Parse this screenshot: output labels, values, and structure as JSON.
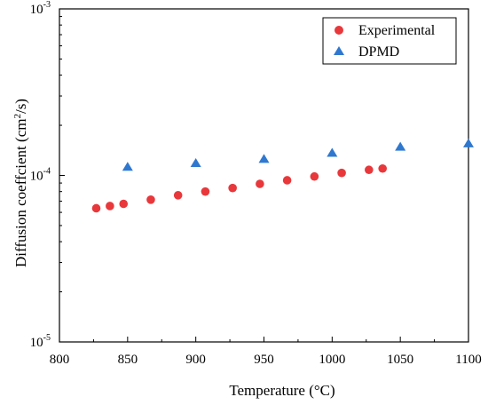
{
  "chart_data": {
    "type": "scatter",
    "xlabel": "Temperature (°C)",
    "ylabel": "Diffusion coeffcient (cm",
    "ylabel_sup": "2",
    "ylabel_tail": "/s)",
    "xlim": [
      800,
      1100
    ],
    "ylim": [
      1e-05,
      0.001
    ],
    "yscale": "log",
    "xticks": [
      800,
      850,
      900,
      950,
      1000,
      1050,
      1100
    ],
    "xtick_labels": [
      "800",
      "850",
      "900",
      "950",
      "1000",
      "1050",
      "1100"
    ],
    "yticks": [
      1e-05,
      0.0001,
      0.001
    ],
    "ytick_labels": [
      {
        "base": "10",
        "exp": "-5"
      },
      {
        "base": "10",
        "exp": "-4"
      },
      {
        "base": "10",
        "exp": "-3"
      }
    ],
    "grid": false,
    "legend_position": "top-right",
    "series": [
      {
        "name": "Experimental",
        "marker": "circle",
        "color": "#e8383b",
        "x": [
          827,
          837,
          847,
          867,
          887,
          907,
          927,
          947,
          967,
          987,
          1007,
          1027,
          1037
        ],
        "y": [
          6.35e-05,
          6.55e-05,
          6.75e-05,
          7.15e-05,
          7.6e-05,
          8e-05,
          8.4e-05,
          8.9e-05,
          9.35e-05,
          9.85e-05,
          0.0001035,
          0.000108,
          0.00011
        ]
      },
      {
        "name": "DPMD",
        "marker": "triangle",
        "color": "#2f78d0",
        "x": [
          850,
          900,
          950,
          1000,
          1050,
          1100
        ],
        "y": [
          0.000112,
          0.000118,
          0.000125,
          0.000136,
          0.000148,
          0.000155
        ]
      }
    ]
  }
}
